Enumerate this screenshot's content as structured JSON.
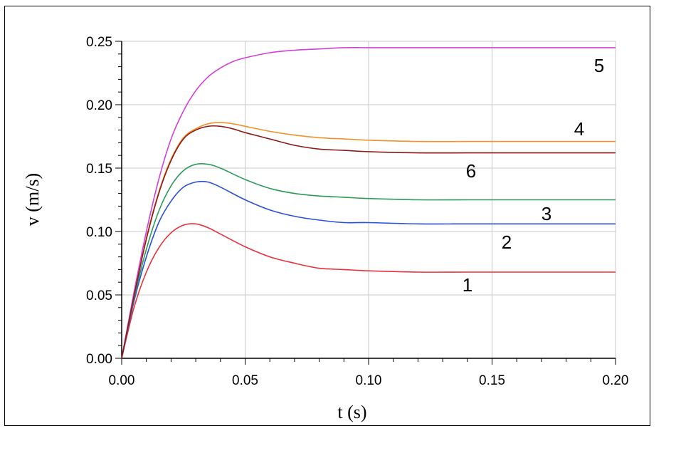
{
  "chart_data": {
    "type": "line",
    "xlabel": "t (s)",
    "ylabel": "v (m/s)",
    "xlim": [
      0,
      0.2
    ],
    "ylim": [
      0,
      0.25
    ],
    "x_ticks": [
      "0.00",
      "0.05",
      "0.10",
      "0.15",
      "0.20"
    ],
    "y_ticks": [
      "0.00",
      "0.05",
      "0.10",
      "0.15",
      "0.20",
      "0.25"
    ],
    "grid": true,
    "colors": {
      "axis": "#000000",
      "grid": "#c8c8c8"
    },
    "series": [
      {
        "name": "1",
        "color": "#e8303a",
        "x": [
          0,
          0.005,
          0.01,
          0.015,
          0.02,
          0.025,
          0.03,
          0.035,
          0.04,
          0.05,
          0.06,
          0.07,
          0.08,
          0.09,
          0.1,
          0.12,
          0.14,
          0.16,
          0.18,
          0.2
        ],
        "y": [
          0,
          0.04,
          0.068,
          0.087,
          0.099,
          0.105,
          0.106,
          0.103,
          0.098,
          0.088,
          0.08,
          0.075,
          0.071,
          0.07,
          0.069,
          0.068,
          0.068,
          0.068,
          0.068,
          0.068
        ]
      },
      {
        "name": "2",
        "color": "#2a4fd8",
        "x": [
          0,
          0.005,
          0.01,
          0.015,
          0.02,
          0.025,
          0.03,
          0.035,
          0.04,
          0.05,
          0.06,
          0.07,
          0.08,
          0.09,
          0.1,
          0.12,
          0.14,
          0.16,
          0.18,
          0.2
        ],
        "y": [
          0,
          0.045,
          0.08,
          0.107,
          0.124,
          0.135,
          0.139,
          0.139,
          0.135,
          0.125,
          0.117,
          0.112,
          0.109,
          0.107,
          0.107,
          0.106,
          0.106,
          0.106,
          0.106,
          0.106
        ]
      },
      {
        "name": "3",
        "color": "#2e9a5a",
        "x": [
          0,
          0.005,
          0.01,
          0.015,
          0.02,
          0.025,
          0.03,
          0.035,
          0.04,
          0.05,
          0.06,
          0.07,
          0.08,
          0.09,
          0.1,
          0.12,
          0.14,
          0.16,
          0.18,
          0.2
        ],
        "y": [
          0,
          0.047,
          0.086,
          0.116,
          0.136,
          0.148,
          0.153,
          0.153,
          0.15,
          0.141,
          0.134,
          0.13,
          0.128,
          0.127,
          0.126,
          0.125,
          0.125,
          0.125,
          0.125,
          0.125
        ]
      },
      {
        "name": "4",
        "color": "#f0922a",
        "x": [
          0,
          0.005,
          0.01,
          0.015,
          0.02,
          0.025,
          0.03,
          0.035,
          0.04,
          0.045,
          0.05,
          0.06,
          0.07,
          0.08,
          0.09,
          0.1,
          0.12,
          0.14,
          0.16,
          0.18,
          0.2
        ],
        "y": [
          0,
          0.05,
          0.095,
          0.131,
          0.157,
          0.174,
          0.181,
          0.185,
          0.186,
          0.185,
          0.183,
          0.179,
          0.176,
          0.174,
          0.173,
          0.172,
          0.171,
          0.171,
          0.171,
          0.171,
          0.171
        ]
      },
      {
        "name": "5",
        "color": "#d040d8",
        "x": [
          0,
          0.005,
          0.01,
          0.015,
          0.02,
          0.025,
          0.03,
          0.035,
          0.04,
          0.045,
          0.05,
          0.06,
          0.07,
          0.08,
          0.09,
          0.1,
          0.12,
          0.14,
          0.16,
          0.18,
          0.2
        ],
        "y": [
          0,
          0.052,
          0.1,
          0.141,
          0.173,
          0.195,
          0.211,
          0.222,
          0.229,
          0.234,
          0.237,
          0.241,
          0.243,
          0.244,
          0.245,
          0.245,
          0.245,
          0.245,
          0.245,
          0.245,
          0.245
        ]
      },
      {
        "name": "6",
        "color": "#8b1a1a",
        "x": [
          0,
          0.005,
          0.01,
          0.015,
          0.02,
          0.025,
          0.03,
          0.035,
          0.04,
          0.045,
          0.05,
          0.06,
          0.07,
          0.08,
          0.09,
          0.1,
          0.12,
          0.14,
          0.16,
          0.18,
          0.2
        ],
        "y": [
          0,
          0.049,
          0.094,
          0.13,
          0.156,
          0.173,
          0.18,
          0.183,
          0.183,
          0.181,
          0.178,
          0.173,
          0.168,
          0.165,
          0.164,
          0.163,
          0.162,
          0.162,
          0.162,
          0.162,
          0.162
        ]
      }
    ],
    "curve_labels": [
      "1",
      "2",
      "3",
      "4",
      "5",
      "6"
    ]
  }
}
